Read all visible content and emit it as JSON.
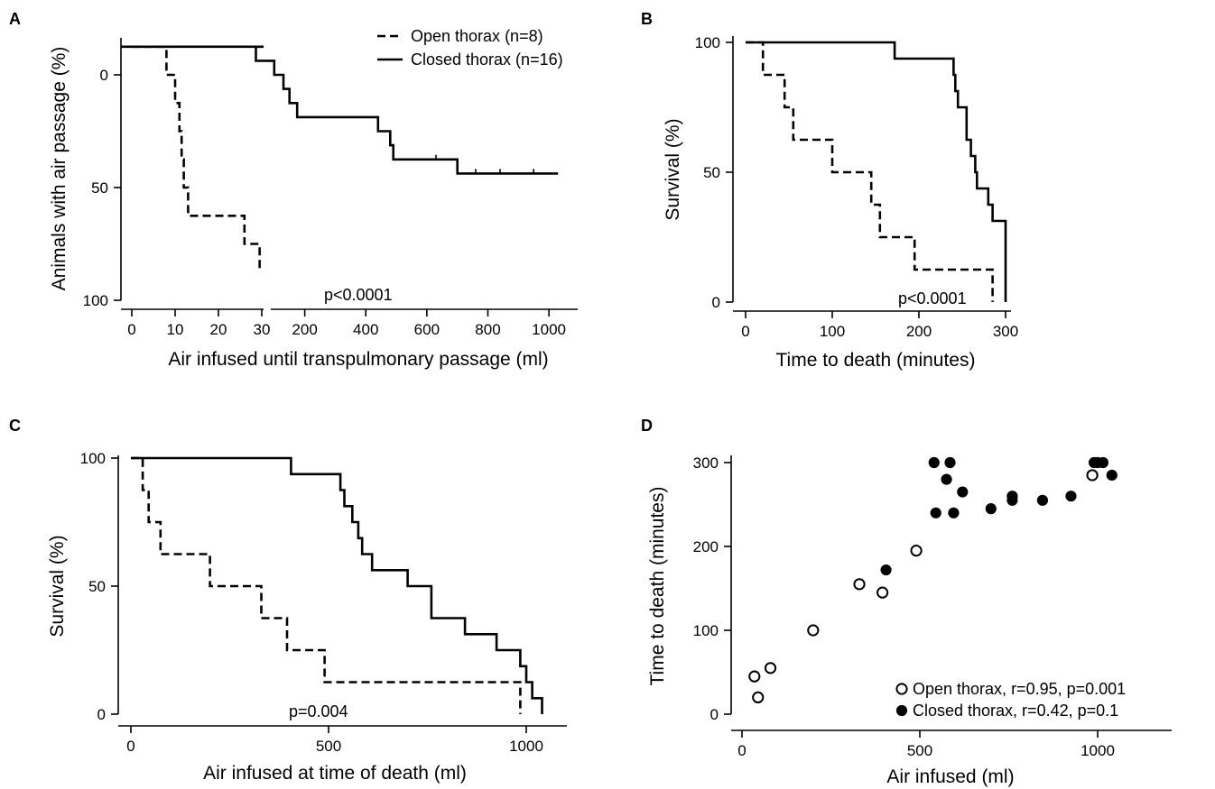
{
  "legend_ab": {
    "open_label": "Open thorax (n=8)",
    "closed_label": "Closed thorax (n=16)"
  },
  "chart_data": [
    {
      "panel": "A",
      "type": "line",
      "step": true,
      "xlabel": "Air infused until transpulmonary passage (ml)",
      "ylabel": "Animals with air passage (%)",
      "ylim": [
        0,
        100
      ],
      "yticks": [
        "0",
        "50",
        "100"
      ],
      "x_axis_broken": true,
      "x_segment_1": {
        "range": [
          0,
          30
        ],
        "ticks": [
          "0",
          "10",
          "20",
          "30"
        ]
      },
      "x_segment_2": {
        "range": [
          0,
          1050
        ],
        "ticks": [
          "200",
          "400",
          "600",
          "800",
          "1000"
        ]
      },
      "annotation": "p<0.0001",
      "series": [
        {
          "name": "Open thorax (n=8)",
          "style": "dashed",
          "steps": [
            [
              0,
              -12.5
            ],
            [
              8,
              -12.5
            ],
            [
              8,
              0
            ],
            [
              10,
              0
            ],
            [
              10,
              12.5
            ],
            [
              11,
              12.5
            ],
            [
              11,
              25
            ],
            [
              11.5,
              25
            ],
            [
              11.5,
              37.5
            ],
            [
              12,
              37.5
            ],
            [
              12,
              50
            ],
            [
              13,
              50
            ],
            [
              13,
              62.5
            ],
            [
              26,
              62.5
            ],
            [
              26,
              75
            ],
            [
              29.5,
              75
            ],
            [
              29.5,
              87.5
            ]
          ]
        },
        {
          "name": "Closed thorax (n=16)",
          "style": "solid",
          "steps": [
            [
              -12.5,
              -12.5
            ],
            [
              0,
              -12.5
            ],
            [
              40,
              -12.5
            ],
            [
              40,
              -6.25
            ],
            [
              100,
              -6.25
            ],
            [
              100,
              0
            ],
            [
              130,
              0
            ],
            [
              130,
              6.25
            ],
            [
              150,
              6.25
            ],
            [
              150,
              12.5
            ],
            [
              175,
              12.5
            ],
            [
              175,
              18.75
            ],
            [
              440,
              18.75
            ],
            [
              440,
              25
            ],
            [
              480,
              25
            ],
            [
              480,
              31.25
            ],
            [
              490,
              31.25
            ],
            [
              490,
              37.5
            ],
            [
              700,
              37.5
            ],
            [
              700,
              43.75
            ],
            [
              1030,
              43.75
            ]
          ]
        }
      ],
      "censor_ticks": [
        630,
        760,
        840,
        950
      ]
    },
    {
      "panel": "B",
      "type": "line",
      "step": true,
      "xlabel": "Time to death (minutes)",
      "ylabel": "Survival (%)",
      "xlim": [
        0,
        300
      ],
      "ylim": [
        0,
        100
      ],
      "xticks": [
        "0",
        "100",
        "200",
        "300"
      ],
      "yticks": [
        "0",
        "50",
        "100"
      ],
      "annotation": "p<0.0001",
      "series": [
        {
          "name": "Open thorax (n=8)",
          "style": "dashed",
          "steps": [
            [
              0,
              100
            ],
            [
              20,
              100
            ],
            [
              20,
              87.5
            ],
            [
              45,
              87.5
            ],
            [
              45,
              75
            ],
            [
              55,
              75
            ],
            [
              55,
              62.5
            ],
            [
              100,
              62.5
            ],
            [
              100,
              50
            ],
            [
              145,
              50
            ],
            [
              145,
              37.5
            ],
            [
              155,
              37.5
            ],
            [
              155,
              25
            ],
            [
              195,
              25
            ],
            [
              195,
              12.5
            ],
            [
              285,
              12.5
            ],
            [
              285,
              0
            ]
          ]
        },
        {
          "name": "Closed thorax (n=16)",
          "style": "solid",
          "steps": [
            [
              0,
              100
            ],
            [
              172,
              100
            ],
            [
              172,
              93.75
            ],
            [
              240,
              93.75
            ],
            [
              240,
              87.5
            ],
            [
              242,
              87.5
            ],
            [
              242,
              81.25
            ],
            [
              245,
              81.25
            ],
            [
              245,
              75
            ],
            [
              255,
              75
            ],
            [
              255,
              62.5
            ],
            [
              260,
              62.5
            ],
            [
              260,
              56.25
            ],
            [
              265,
              56.25
            ],
            [
              265,
              50
            ],
            [
              267,
              50
            ],
            [
              267,
              43.75
            ],
            [
              280,
              43.75
            ],
            [
              280,
              37.5
            ],
            [
              285,
              37.5
            ],
            [
              285,
              31.25
            ],
            [
              300,
              31.25
            ],
            [
              300,
              0
            ]
          ]
        }
      ]
    },
    {
      "panel": "C",
      "type": "line",
      "step": true,
      "xlabel": "Air infused at time of death (ml)",
      "ylabel": "Survival (%)",
      "xlim": [
        0,
        1100
      ],
      "ylim": [
        0,
        100
      ],
      "xticks": [
        "0",
        "500",
        "1000"
      ],
      "yticks": [
        "0",
        "50",
        "100"
      ],
      "annotation": "p=0.004",
      "series": [
        {
          "name": "Open thorax (n=8)",
          "style": "dashed",
          "steps": [
            [
              0,
              100
            ],
            [
              30,
              100
            ],
            [
              30,
              87.5
            ],
            [
              45,
              87.5
            ],
            [
              45,
              75
            ],
            [
              75,
              75
            ],
            [
              75,
              62.5
            ],
            [
              200,
              62.5
            ],
            [
              200,
              50
            ],
            [
              330,
              50
            ],
            [
              330,
              37.5
            ],
            [
              395,
              37.5
            ],
            [
              395,
              25
            ],
            [
              490,
              25
            ],
            [
              490,
              12.5
            ],
            [
              985,
              12.5
            ],
            [
              985,
              0
            ]
          ]
        },
        {
          "name": "Closed thorax (n=16)",
          "style": "solid",
          "steps": [
            [
              0,
              100
            ],
            [
              405,
              100
            ],
            [
              405,
              93.75
            ],
            [
              530,
              93.75
            ],
            [
              530,
              87.5
            ],
            [
              540,
              87.5
            ],
            [
              540,
              81.25
            ],
            [
              560,
              81.25
            ],
            [
              560,
              75
            ],
            [
              575,
              75
            ],
            [
              575,
              68.75
            ],
            [
              585,
              68.75
            ],
            [
              585,
              62.5
            ],
            [
              610,
              62.5
            ],
            [
              610,
              56.25
            ],
            [
              700,
              56.25
            ],
            [
              700,
              50
            ],
            [
              760,
              50
            ],
            [
              760,
              37.5
            ],
            [
              845,
              37.5
            ],
            [
              845,
              31.25
            ],
            [
              925,
              31.25
            ],
            [
              925,
              25
            ],
            [
              985,
              25
            ],
            [
              985,
              18.75
            ],
            [
              1000,
              18.75
            ],
            [
              1000,
              12.5
            ],
            [
              1015,
              12.5
            ],
            [
              1015,
              6.25
            ],
            [
              1040,
              6.25
            ],
            [
              1040,
              0
            ]
          ]
        }
      ]
    },
    {
      "panel": "D",
      "type": "scatter",
      "xlabel": "Air infused (ml)",
      "ylabel": "Time to death (minutes)",
      "xlim": [
        0,
        1200
      ],
      "ylim": [
        0,
        300
      ],
      "xticks": [
        "0",
        "500",
        "1000"
      ],
      "yticks": [
        "0",
        "100",
        "200",
        "300"
      ],
      "series": [
        {
          "name": "Open thorax, r=0.95, p=0.001",
          "marker": "open-circle",
          "points": [
            [
              35,
              45
            ],
            [
              45,
              20
            ],
            [
              80,
              55
            ],
            [
              200,
              100
            ],
            [
              330,
              155
            ],
            [
              395,
              145
            ],
            [
              490,
              195
            ],
            [
              985,
              285
            ]
          ]
        },
        {
          "name": "Closed thorax, r=0.42, p=0.1",
          "marker": "filled-circle",
          "points": [
            [
              405,
              172
            ],
            [
              540,
              300
            ],
            [
              545,
              240
            ],
            [
              575,
              280
            ],
            [
              585,
              300
            ],
            [
              595,
              240
            ],
            [
              620,
              265
            ],
            [
              700,
              245
            ],
            [
              760,
              255
            ],
            [
              760,
              260
            ],
            [
              845,
              255
            ],
            [
              925,
              260
            ],
            [
              990,
              300
            ],
            [
              1000,
              300
            ],
            [
              1015,
              300
            ],
            [
              1040,
              285
            ]
          ]
        }
      ]
    }
  ]
}
